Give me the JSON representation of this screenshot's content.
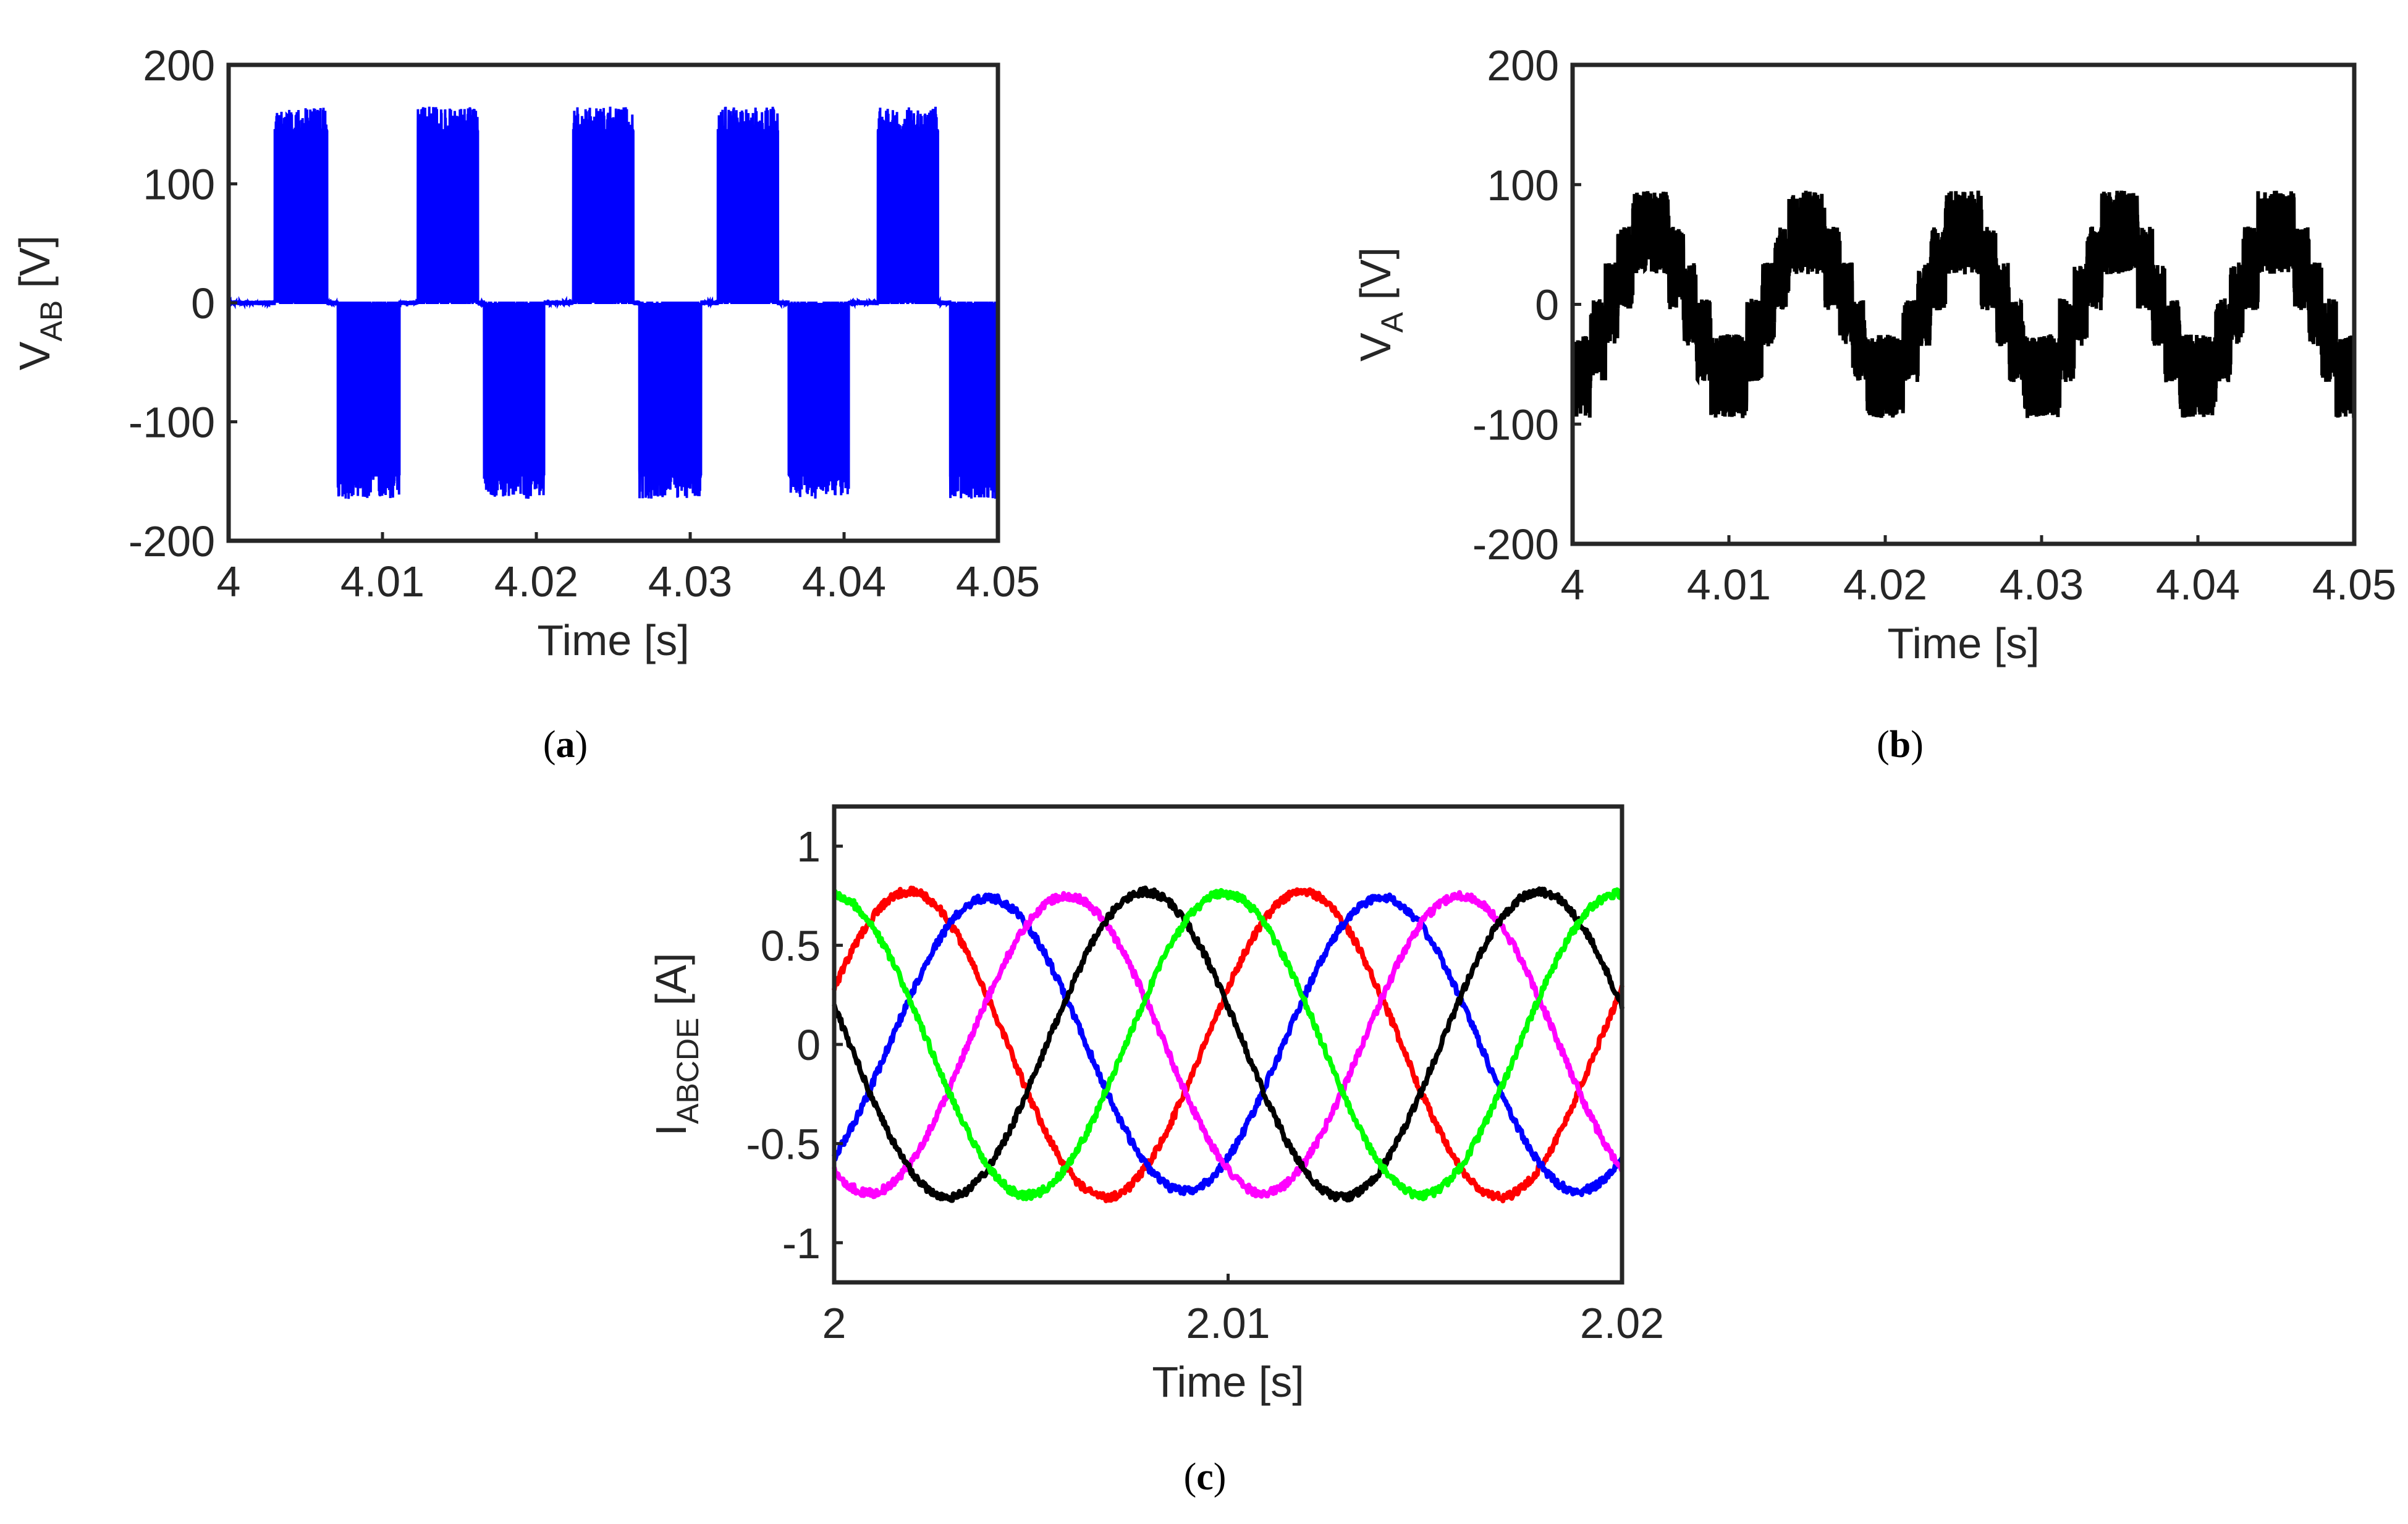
{
  "chart_data": [
    {
      "id": "a",
      "type": "line",
      "caption": "a",
      "xlabel": "Time [s]",
      "ylabel": {
        "main": "V",
        "sub": "AB",
        "unit": " [V]"
      },
      "xlim": [
        4,
        4.05
      ],
      "ylim": [
        -200,
        200
      ],
      "xticks": [
        "4",
        "4.01",
        "4.02",
        "4.03",
        "4.04",
        "4.05"
      ],
      "xtick_values": [
        4,
        4.01,
        4.02,
        4.03,
        4.04,
        4.05
      ],
      "yticks": [
        "200",
        "100",
        "0",
        "-100",
        "-200"
      ],
      "ytick_values": [
        200,
        100,
        0,
        -100,
        -200
      ],
      "grid": false,
      "series": [
        {
          "color": "#0000ff",
          "kind": "pwm-line-voltage",
          "fundamental_period_s": 0.01,
          "positive_blocks_s": [
            [
              4.003,
              4.0064
            ],
            [
              4.0123,
              4.0162
            ],
            [
              4.0224,
              4.0263
            ],
            [
              4.0318,
              4.0357
            ],
            [
              4.0422,
              4.0461
            ]
          ],
          "negative_blocks_s": [
            [
              4.0071,
              4.0111
            ],
            [
              4.0166,
              4.0205
            ],
            [
              4.0267,
              4.0307
            ],
            [
              4.0364,
              4.0403
            ],
            [
              4.0469,
              4.05
            ]
          ],
          "peak_V": 165,
          "inner_level_V": 145
        }
      ]
    },
    {
      "id": "b",
      "type": "line",
      "caption": "b",
      "xlabel": "Time [s]",
      "ylabel": {
        "main": "V",
        "sub": "A",
        "unit": " [V]"
      },
      "xlim": [
        4,
        4.05
      ],
      "ylim": [
        -200,
        200
      ],
      "xticks": [
        "4",
        "4.01",
        "4.02",
        "4.03",
        "4.04",
        "4.05"
      ],
      "xtick_values": [
        4,
        4.01,
        4.02,
        4.03,
        4.04,
        4.05
      ],
      "yticks": [
        "200",
        "100",
        "0",
        "-100",
        "-200"
      ],
      "ytick_values": [
        200,
        100,
        0,
        -100,
        -200
      ],
      "grid": false,
      "series": [
        {
          "color": "#000000",
          "kind": "pwm-phase-voltage",
          "fundamental_period_s": 0.01,
          "phase_peak_time_s": 4.005,
          "amplitude_V": 60,
          "peak_V": 115,
          "min_V": -130
        }
      ]
    },
    {
      "id": "c",
      "type": "line",
      "caption": "c",
      "xlabel": "Time [s]",
      "ylabel": {
        "main": "I",
        "sub": "ABCDE",
        "unit": " [A]"
      },
      "xlim": [
        2,
        2.02
      ],
      "ylim": [
        -1.2,
        1.2
      ],
      "xticks": [
        "2",
        "2.01",
        "2.02"
      ],
      "xtick_values": [
        2,
        2.01,
        2.02
      ],
      "yticks": [
        "1",
        "0.5",
        "0",
        "-0.5",
        "-1"
      ],
      "ytick_values": [
        1,
        0.5,
        0,
        -0.5,
        -1
      ],
      "grid": false,
      "series": [
        {
          "color": "#ff0000",
          "peak_time_s": 2.0019,
          "amplitude_A": 0.77,
          "period_s": 0.01
        },
        {
          "color": "#0000ff",
          "peak_time_s": 2.0039,
          "amplitude_A": 0.74,
          "period_s": 0.01
        },
        {
          "color": "#ff00ff",
          "peak_time_s": 2.0059,
          "amplitude_A": 0.75,
          "period_s": 0.01
        },
        {
          "color": "#000000",
          "peak_time_s": 2.0079,
          "amplitude_A": 0.77,
          "period_s": 0.01
        },
        {
          "color": "#00ff00",
          "peak_time_s": 2.0099,
          "amplitude_A": 0.76,
          "period_s": 0.01
        }
      ]
    }
  ]
}
